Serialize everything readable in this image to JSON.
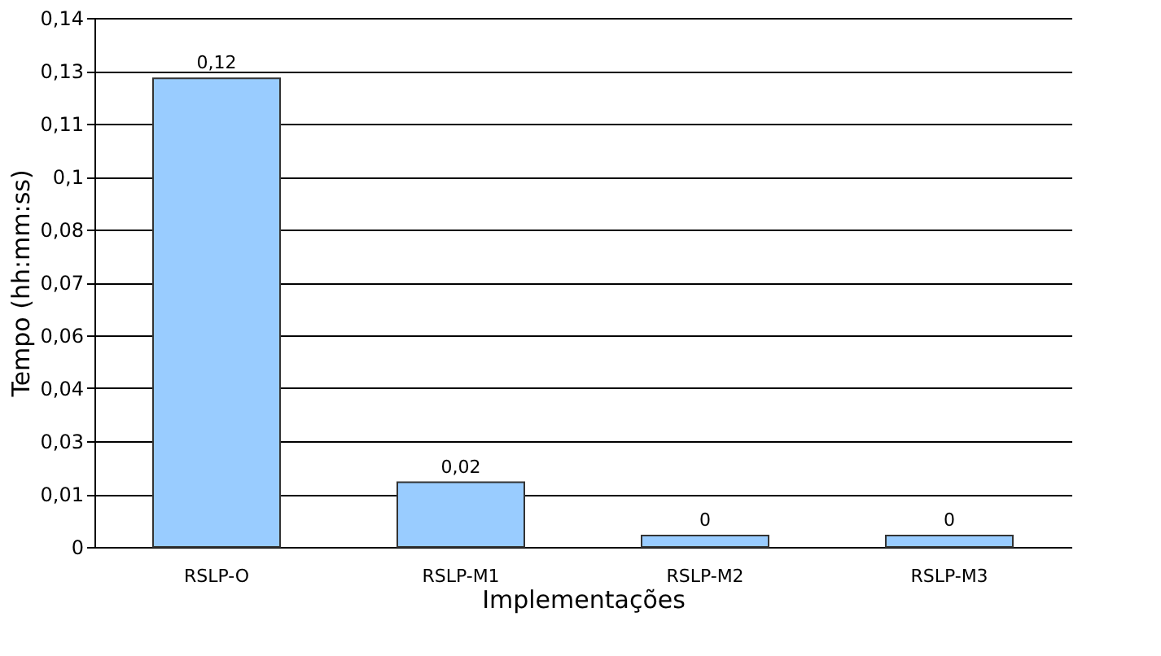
{
  "chart_data": {
    "type": "bar",
    "xlabel": "Implementações",
    "ylabel": "Tempo (hh:mm:ss)",
    "categories": [
      "RSLP-O",
      "RSLP-M1",
      "RSLP-M2",
      "RSLP-M3"
    ],
    "values": [
      0.124,
      0.0171,
      0.003,
      0.003
    ],
    "value_labels": [
      "0,12",
      "0,02",
      "0",
      "0"
    ],
    "color": "#99ccff",
    "ylim": [
      0,
      0.14
    ],
    "yticks": [
      0,
      {
        "value": 0.014,
        "label": "0,01"
      },
      {
        "value": 0.028,
        "label": "0,03"
      },
      {
        "value": 0.042,
        "label": "0,04"
      },
      {
        "value": 0.056,
        "label": "0,06"
      },
      {
        "value": 0.07,
        "label": "0,07"
      },
      {
        "value": 0.084,
        "label": "0,08"
      },
      {
        "value": 0.098,
        "label": "0,1"
      },
      {
        "value": 0.112,
        "label": "0,11"
      },
      {
        "value": 0.126,
        "label": "0,13"
      },
      {
        "value": 0.14,
        "label": "0,14"
      }
    ],
    "grid": "y"
  }
}
